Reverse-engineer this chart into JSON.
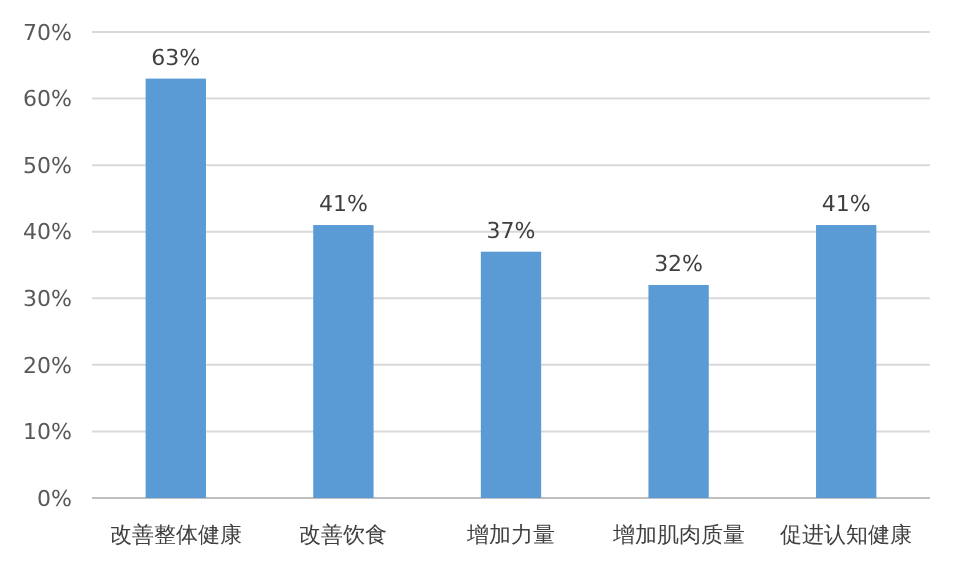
{
  "chart_data": {
    "type": "bar",
    "categories": [
      "改善整体健康",
      "改善饮食",
      "增加力量",
      "增加肌肉质量",
      "促进认知健康"
    ],
    "values": [
      63,
      41,
      37,
      32,
      41
    ],
    "color": "#5b9bd5",
    "value_labels": [
      "63%",
      "41%",
      "37%",
      "32%",
      "41%"
    ],
    "ylim": [
      0,
      70
    ],
    "yticks": [
      {
        "value": 0,
        "label": "0%"
      },
      {
        "value": 10,
        "label": "10%"
      },
      {
        "value": 20,
        "label": "20%"
      },
      {
        "value": 30,
        "label": "30%"
      },
      {
        "value": 40,
        "label": "40%"
      },
      {
        "value": 50,
        "label": "50%"
      },
      {
        "value": 60,
        "label": "60%"
      },
      {
        "value": 70,
        "label": "70%"
      }
    ],
    "grid": "y"
  }
}
